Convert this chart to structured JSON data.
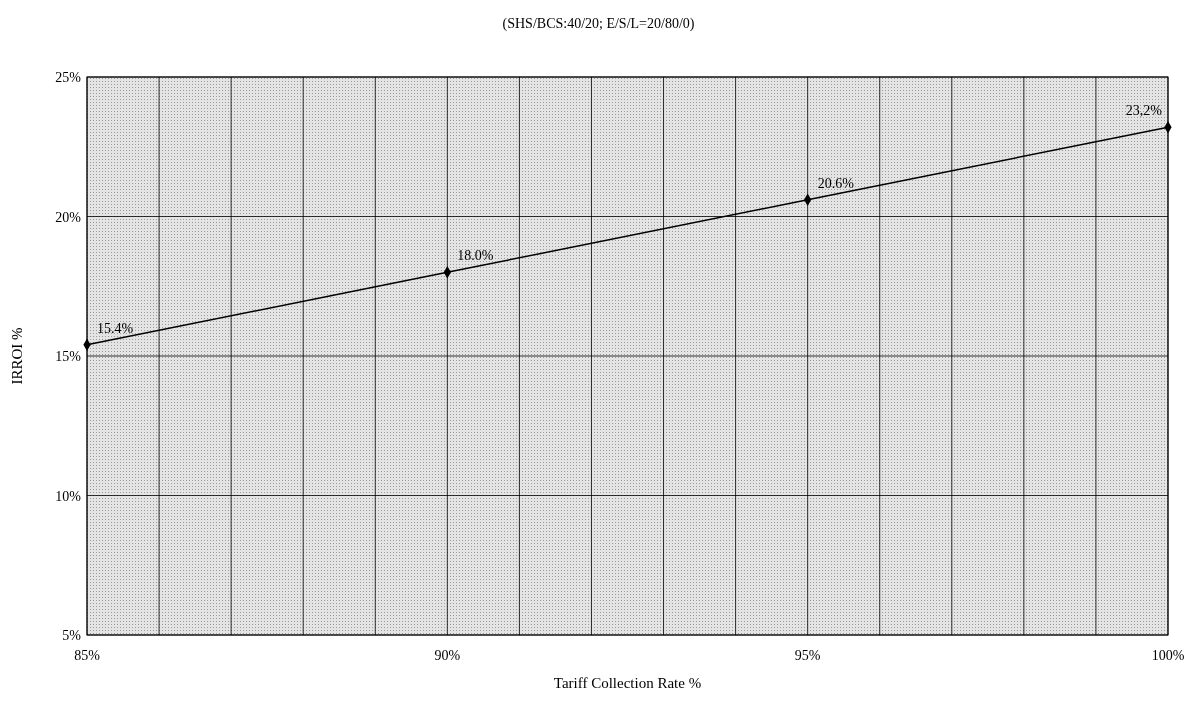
{
  "chart_data": {
    "type": "line",
    "title": "(SHS/BCS:40/20; E/S/L=20/80/0)",
    "xlabel": "Tariff Collection Rate %",
    "ylabel": "IRROI %",
    "x": [
      85,
      90,
      95,
      100
    ],
    "series": [
      {
        "color": "#000000",
        "values": [
          15.4,
          18.0,
          20.6,
          23.2
        ],
        "value_labels": [
          "15.4%",
          "18.0%",
          "20.6%",
          "23,2%"
        ]
      }
    ],
    "xlim": [
      85,
      100
    ],
    "xticks": [
      {
        "value": 85,
        "label": "85%"
      },
      {
        "value": 86,
        "label": null
      },
      {
        "value": 87,
        "label": null
      },
      {
        "value": 88,
        "label": null
      },
      {
        "value": 89,
        "label": null
      },
      {
        "value": 90,
        "label": "90%"
      },
      {
        "value": 91,
        "label": null
      },
      {
        "value": 92,
        "label": null
      },
      {
        "value": 93,
        "label": null
      },
      {
        "value": 94,
        "label": null
      },
      {
        "value": 95,
        "label": "95%"
      },
      {
        "value": 96,
        "label": null
      },
      {
        "value": 97,
        "label": null
      },
      {
        "value": 98,
        "label": null
      },
      {
        "value": 99,
        "label": null
      },
      {
        "value": 100,
        "label": "100%"
      }
    ],
    "ylim": [
      5,
      25
    ],
    "yticks": [
      {
        "value": 5,
        "label": "5%"
      },
      {
        "value": 10,
        "label": "10%"
      },
      {
        "value": 15,
        "label": "15%"
      },
      {
        "value": 20,
        "label": "20%"
      },
      {
        "value": 25,
        "label": "25%"
      }
    ],
    "grid": true,
    "marker": "diamond",
    "line_style": "solid"
  }
}
